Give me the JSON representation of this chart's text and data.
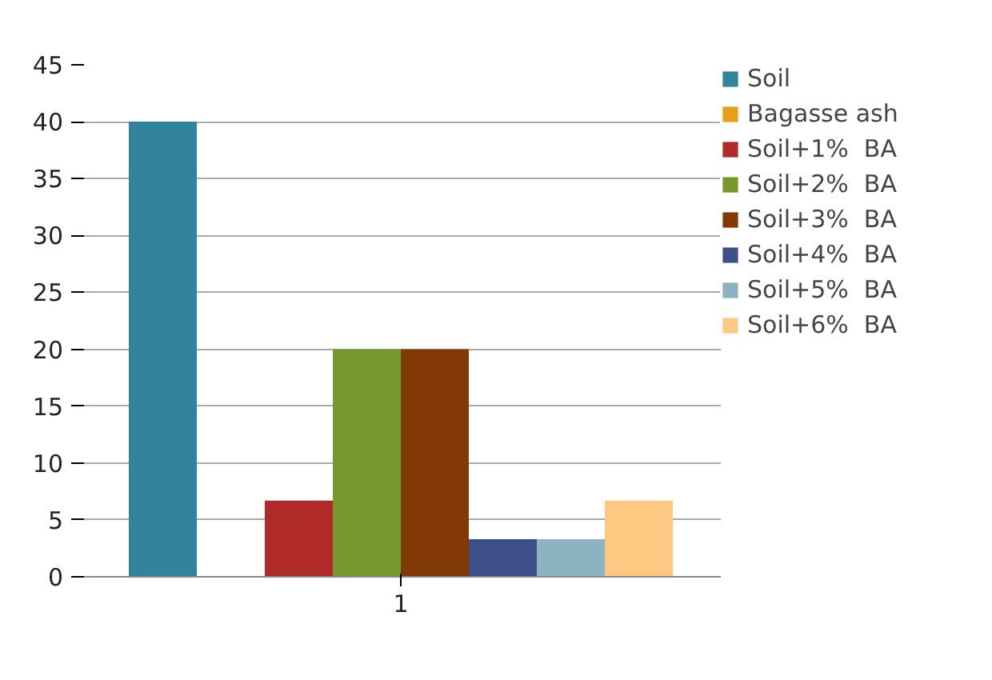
{
  "chart_data": {
    "type": "bar",
    "categories": [
      "1"
    ],
    "series": [
      {
        "name": "Soil",
        "color": "#31849b",
        "values": [
          40
        ]
      },
      {
        "name": "Bagasse ash",
        "color": "#e6a118",
        "values": [
          0
        ]
      },
      {
        "name": "Soil+1%  BA",
        "color": "#b02a2a",
        "values": [
          6.7
        ]
      },
      {
        "name": "Soil+2%  BA",
        "color": "#77982f",
        "values": [
          20
        ]
      },
      {
        "name": "Soil+3%  BA",
        "color": "#833905",
        "values": [
          20
        ]
      },
      {
        "name": "Soil+4%  BA",
        "color": "#3c4f88",
        "values": [
          3.3
        ]
      },
      {
        "name": "Soil+5%  BA",
        "color": "#8db3c3",
        "values": [
          3.3
        ]
      },
      {
        "name": "Soil+6%  BA",
        "color": "#fdc982",
        "values": [
          6.7
        ]
      }
    ],
    "ylim": [
      0,
      45
    ],
    "yticks": [
      0,
      5,
      10,
      15,
      20,
      25,
      30,
      35,
      40,
      45
    ],
    "grid": "y",
    "legend": "right"
  }
}
